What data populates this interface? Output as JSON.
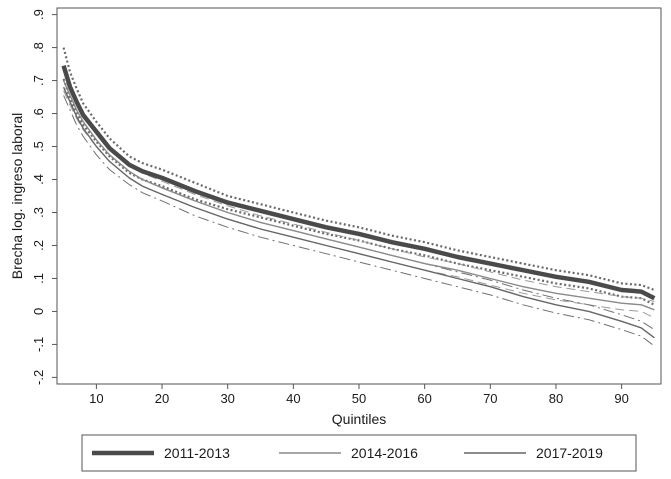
{
  "chart_data": {
    "type": "line",
    "title": "",
    "xlabel": "Quintiles",
    "ylabel": "Brecha log. ingreso laboral",
    "xlim": [
      4,
      96
    ],
    "ylim": [
      -0.22,
      0.92
    ],
    "x_ticks": [
      10,
      20,
      30,
      40,
      50,
      60,
      70,
      80,
      90
    ],
    "x_tick_labels": [
      "10",
      "20",
      "30",
      "40",
      "50",
      "60",
      "70",
      "80",
      "90"
    ],
    "y_ticks": [
      -0.2,
      -0.1,
      0,
      0.1,
      0.2,
      0.3,
      0.4,
      0.5,
      0.6,
      0.7,
      0.8,
      0.9
    ],
    "y_tick_labels": [
      "-.2",
      "-.1",
      "0",
      ".1",
      ".2",
      ".3",
      ".4",
      ".5",
      ".6",
      ".7",
      ".8",
      ".9"
    ],
    "grid": false,
    "legend_position": "bottom",
    "x": [
      5,
      6,
      7,
      8,
      10,
      12,
      15,
      17,
      20,
      25,
      30,
      35,
      40,
      45,
      50,
      55,
      60,
      65,
      70,
      75,
      80,
      85,
      90,
      93,
      95
    ],
    "series": [
      {
        "name": "2011-2013",
        "color": "#4a4a4a",
        "style": "solid-thick",
        "values": [
          0.745,
          0.68,
          0.635,
          0.595,
          0.545,
          0.495,
          0.445,
          0.425,
          0.405,
          0.365,
          0.33,
          0.305,
          0.28,
          0.255,
          0.235,
          0.21,
          0.19,
          0.165,
          0.145,
          0.125,
          0.105,
          0.09,
          0.065,
          0.06,
          0.04
        ],
        "ci_upper": [
          0.8,
          0.725,
          0.675,
          0.63,
          0.575,
          0.525,
          0.47,
          0.45,
          0.43,
          0.39,
          0.35,
          0.325,
          0.3,
          0.275,
          0.255,
          0.23,
          0.21,
          0.185,
          0.165,
          0.145,
          0.125,
          0.11,
          0.085,
          0.08,
          0.065
        ],
        "ci_lower": [
          0.705,
          0.645,
          0.6,
          0.565,
          0.515,
          0.47,
          0.42,
          0.4,
          0.38,
          0.34,
          0.31,
          0.285,
          0.26,
          0.235,
          0.215,
          0.19,
          0.17,
          0.145,
          0.125,
          0.105,
          0.085,
          0.07,
          0.045,
          0.04,
          0.02
        ]
      },
      {
        "name": "2014-2016",
        "color": "#8a8a8a",
        "style": "solid-thin",
        "values": [
          0.7,
          0.655,
          0.61,
          0.575,
          0.52,
          0.475,
          0.425,
          0.4,
          0.375,
          0.335,
          0.3,
          0.27,
          0.245,
          0.22,
          0.195,
          0.17,
          0.145,
          0.125,
          0.1,
          0.075,
          0.055,
          0.04,
          0.025,
          0.02,
          0.005
        ],
        "ci_upper": [
          0.735,
          0.68,
          0.635,
          0.595,
          0.54,
          0.495,
          0.445,
          0.42,
          0.395,
          0.355,
          0.32,
          0.29,
          0.265,
          0.24,
          0.215,
          0.19,
          0.165,
          0.145,
          0.12,
          0.095,
          0.075,
          0.06,
          0.045,
          0.04,
          0.03
        ],
        "ci_lower": [
          0.67,
          0.625,
          0.585,
          0.55,
          0.5,
          0.455,
          0.405,
          0.38,
          0.355,
          0.315,
          0.28,
          0.25,
          0.225,
          0.2,
          0.175,
          0.15,
          0.125,
          0.105,
          0.08,
          0.055,
          0.035,
          0.02,
          0.005,
          0.0,
          -0.02
        ]
      },
      {
        "name": "2017-2019",
        "color": "#666666",
        "style": "solid-thin",
        "values": [
          0.68,
          0.635,
          0.59,
          0.555,
          0.5,
          0.455,
          0.405,
          0.38,
          0.355,
          0.315,
          0.28,
          0.25,
          0.225,
          0.2,
          0.175,
          0.15,
          0.125,
          0.1,
          0.075,
          0.045,
          0.02,
          0.0,
          -0.03,
          -0.05,
          -0.08
        ],
        "ci_upper": [
          0.7,
          0.655,
          0.61,
          0.575,
          0.52,
          0.475,
          0.425,
          0.4,
          0.375,
          0.335,
          0.3,
          0.27,
          0.245,
          0.22,
          0.195,
          0.17,
          0.145,
          0.12,
          0.095,
          0.065,
          0.04,
          0.02,
          -0.01,
          -0.03,
          -0.055
        ],
        "ci_lower": [
          0.655,
          0.61,
          0.565,
          0.53,
          0.475,
          0.43,
          0.385,
          0.36,
          0.335,
          0.29,
          0.255,
          0.225,
          0.2,
          0.175,
          0.15,
          0.125,
          0.1,
          0.075,
          0.05,
          0.02,
          -0.005,
          -0.025,
          -0.055,
          -0.075,
          -0.105
        ]
      }
    ]
  }
}
